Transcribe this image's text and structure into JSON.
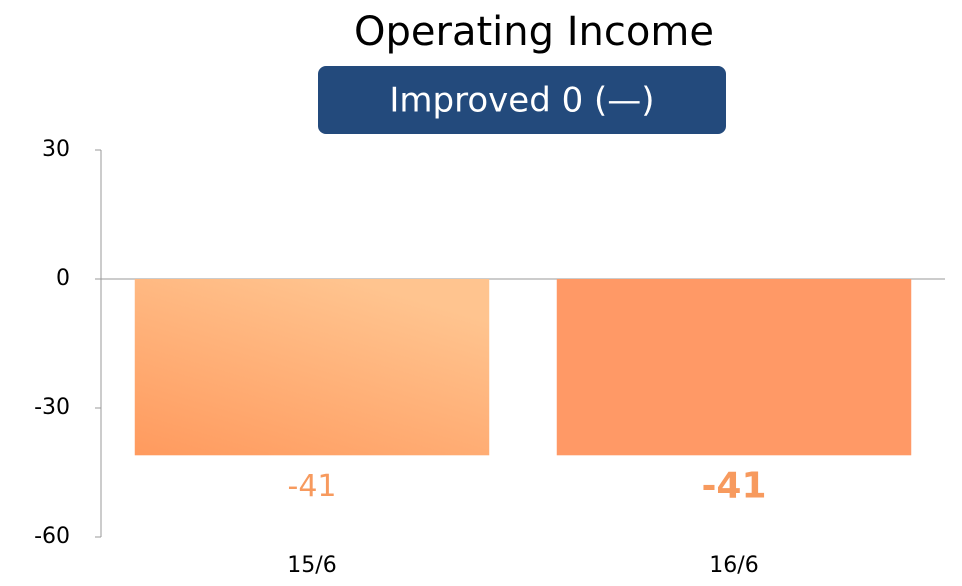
{
  "chart_data": {
    "type": "bar",
    "title": "Operating Income",
    "subtitle": "Improved 0 (—)",
    "categories": [
      "15/6",
      "16/6"
    ],
    "values": [
      -41,
      -41
    ],
    "colors": [
      "#ffb37e",
      "#ff9966"
    ],
    "ylim": [
      -60,
      30
    ],
    "yticks": [
      -60,
      -30,
      0,
      30
    ]
  }
}
